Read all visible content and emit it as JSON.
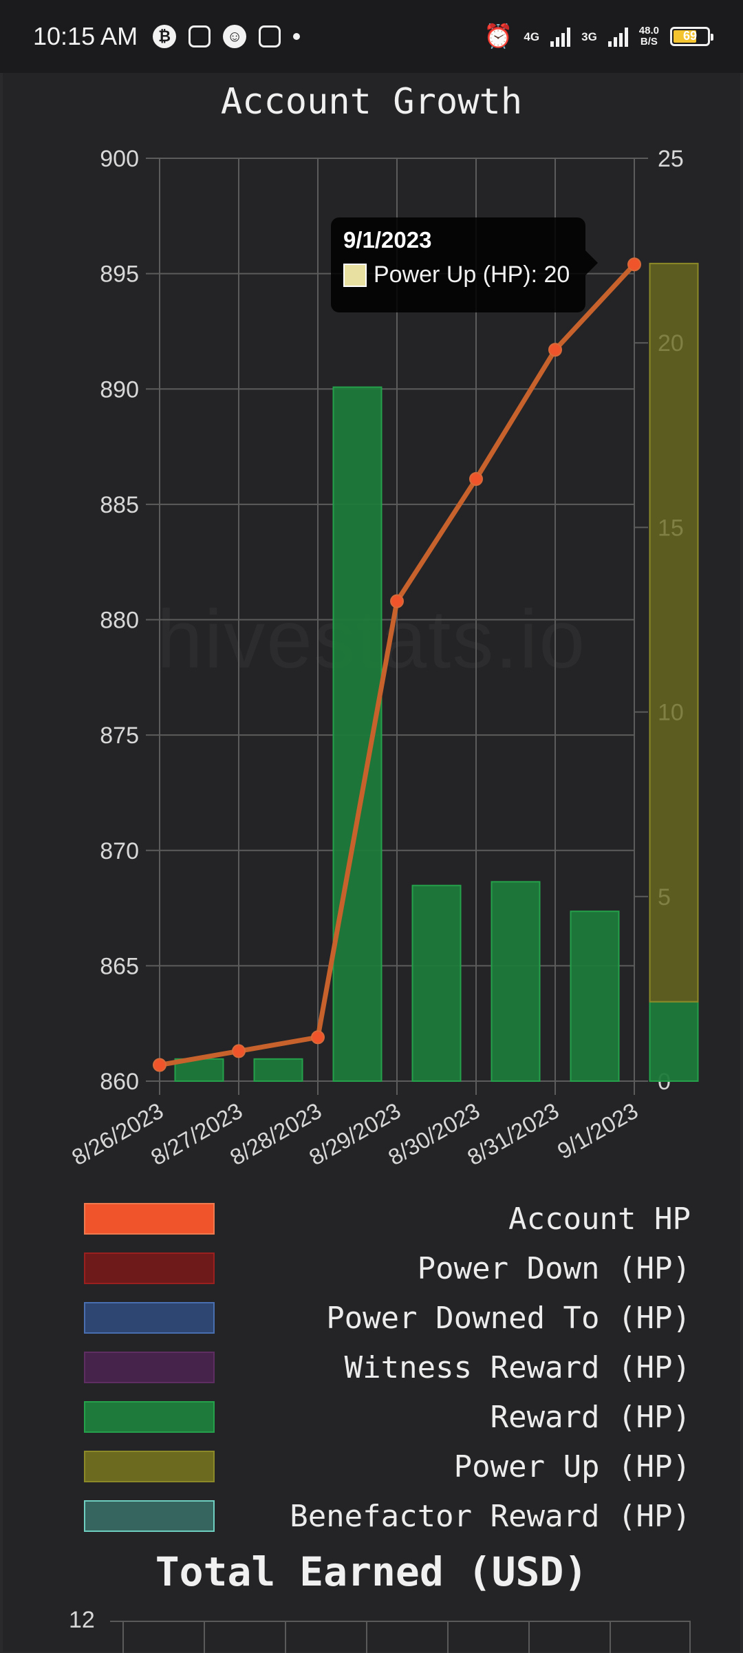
{
  "status_bar": {
    "time": "10:15 AM",
    "left_icons": [
      "bitcoin-icon",
      "instagram-icon",
      "snapchat-icon",
      "app-icon"
    ],
    "net1": "4G",
    "net2": "3G",
    "speed_value": "48.0",
    "speed_unit": "B/S",
    "battery": "69"
  },
  "watermark": "hivestats.io",
  "tooltip": {
    "title": "9/1/2023",
    "label": "Power Up (HP): 20"
  },
  "chart_data": {
    "type": "bar",
    "title": "Account Growth",
    "categories": [
      "8/26/2023",
      "8/27/2023",
      "8/28/2023",
      "8/29/2023",
      "8/30/2023",
      "8/31/2023",
      "9/1/2023"
    ],
    "y_left": {
      "ylim": [
        860,
        900
      ],
      "ticks": [
        900,
        895,
        890,
        885,
        880,
        875,
        870,
        865,
        860
      ]
    },
    "y_right": {
      "ylim": [
        0,
        25
      ],
      "ticks": [
        25,
        20,
        15,
        10,
        5,
        0
      ]
    },
    "series": [
      {
        "name": "Account HP",
        "type": "line",
        "axis": "left",
        "color": "#f0542a",
        "values": [
          860.7,
          861.3,
          861.9,
          880.8,
          886.1,
          891.7,
          895.4
        ]
      },
      {
        "name": "Reward (HP)",
        "type": "bar",
        "axis": "right",
        "color": "#1d7a3a",
        "values": [
          0.6,
          0.6,
          18.8,
          5.3,
          5.4,
          4.6,
          2.15
        ]
      },
      {
        "name": "Power Up (HP)",
        "type": "bar",
        "axis": "right",
        "color": "#6b6a1f",
        "values": [
          0,
          0,
          0,
          0,
          0,
          0,
          20
        ]
      }
    ],
    "legend": [
      {
        "label": "Account HP",
        "fill": "#f0542a",
        "border": "#f07a50"
      },
      {
        "label": "Power Down (HP)",
        "fill": "#6e1a1a",
        "border": "#9a2020"
      },
      {
        "label": "Power Downed To (HP)",
        "fill": "#2e4772",
        "border": "#4a6fb0"
      },
      {
        "label": "Witness Reward (HP)",
        "fill": "#46234a",
        "border": "#5e2e63"
      },
      {
        "label": "Reward (HP)",
        "fill": "#1d7a3a",
        "border": "#25a04b"
      },
      {
        "label": "Power Up (HP)",
        "fill": "#6b6a1f",
        "border": "#8c8a28"
      },
      {
        "label": "Benefactor Reward (HP)",
        "fill": "#36645e",
        "border": "#6fd0c2"
      }
    ]
  },
  "second_chart": {
    "title": "Total Earned (USD)",
    "top_tick": "12"
  }
}
